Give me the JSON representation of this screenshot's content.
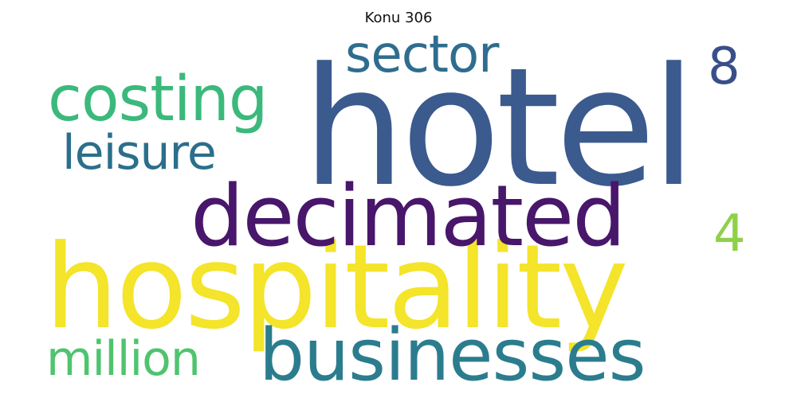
{
  "title": "Konu 306",
  "words": [
    {
      "text": "hotel",
      "color": "#3b5a8e"
    },
    {
      "text": "hospitality",
      "color": "#f4e42a"
    },
    {
      "text": "decimated",
      "color": "#48166a"
    },
    {
      "text": "businesses",
      "color": "#2b7d8e"
    },
    {
      "text": "costing",
      "color": "#3bb97c"
    },
    {
      "text": "sector",
      "color": "#2f6d8e"
    },
    {
      "text": "leisure",
      "color": "#2b6f8b"
    },
    {
      "text": "million",
      "color": "#4ec46e"
    },
    {
      "text": "8",
      "color": "#3a4f89"
    },
    {
      "text": "4",
      "color": "#8ed148"
    }
  ]
}
